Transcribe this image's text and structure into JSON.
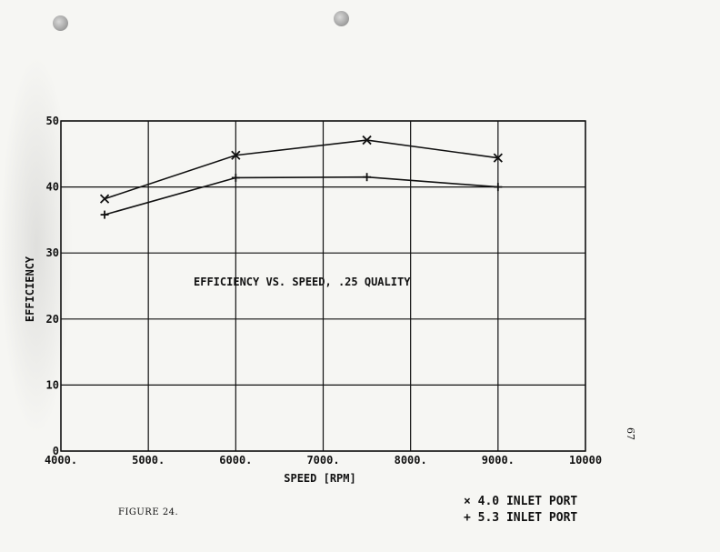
{
  "page_number": "67",
  "figure_label": "FIGURE 24.",
  "legend": [
    {
      "marker": "×",
      "label": "4.0 INLET PORT"
    },
    {
      "marker": "+",
      "label": "5.3 INLET PORT"
    }
  ],
  "chart_data": {
    "type": "line",
    "title": "",
    "annotation": "EFFICIENCY VS. SPEED, .25 QUALITY",
    "xlabel": "SPEED [RPM]",
    "ylabel": "EFFICIENCY",
    "xlim": [
      4000,
      10000
    ],
    "ylim": [
      0,
      50
    ],
    "x_ticks": [
      4000,
      5000,
      6000,
      7000,
      8000,
      9000,
      10000
    ],
    "x_tick_labels": [
      "4000.",
      "5000.",
      "6000.",
      "7000.",
      "8000.",
      "9000.",
      "10000"
    ],
    "y_ticks": [
      0,
      10,
      20,
      30,
      40,
      50
    ],
    "y_tick_labels": [
      "0",
      "10",
      "20",
      "30",
      "40",
      "50"
    ],
    "grid": true,
    "legend_position": "bottom-right, below chart",
    "series": [
      {
        "name": "4.0 INLET PORT",
        "marker": "x",
        "x": [
          4500,
          6000,
          7500,
          9000
        ],
        "y": [
          38.2,
          44.8,
          47.1,
          44.4
        ]
      },
      {
        "name": "5.3 INLET PORT",
        "marker": "+",
        "x": [
          4500,
          6000,
          7500,
          9000
        ],
        "y": [
          35.8,
          41.4,
          41.5,
          40.0
        ]
      }
    ]
  }
}
